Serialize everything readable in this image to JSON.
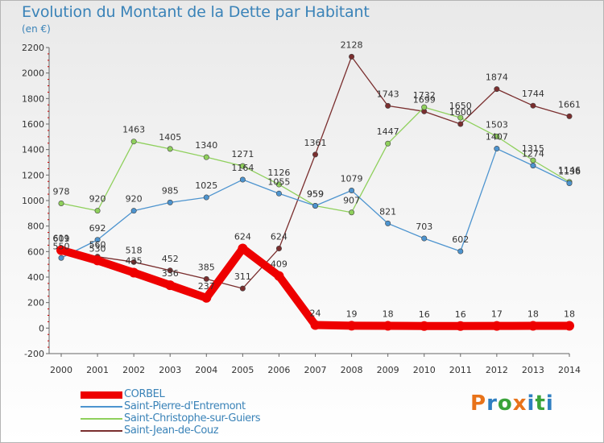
{
  "header": {
    "title": "Evolution du Montant de la Dette par Habitant",
    "subtitle": "(en €)"
  },
  "logo": {
    "text": "Proxiti",
    "colors": [
      "#e8731a",
      "#2f7fc1",
      "#3aa33a",
      "#e8731a",
      "#2f7fc1",
      "#3aa33a",
      "#2f7fc1"
    ]
  },
  "chart_data": {
    "type": "line",
    "title": "Evolution du Montant de la Dette par Habitant",
    "ylabel": "(en €)",
    "xlabel": "",
    "x": [
      "2000",
      "2001",
      "2002",
      "2003",
      "2004",
      "2005",
      "2006",
      "2007",
      "2008",
      "2009",
      "2010",
      "2011",
      "2012",
      "2013",
      "2014"
    ],
    "ylim": [
      -200,
      2200
    ],
    "yticks": [
      "-200",
      "0",
      "200",
      "400",
      "600",
      "800",
      "1000",
      "1200",
      "1400",
      "1600",
      "1800",
      "2000",
      "2200"
    ],
    "grid": false,
    "legend_position": "bottom-left",
    "series": [
      {
        "name": "CORBEL",
        "color": "#ee0000",
        "labels": [
          "611",
          "530",
          "435",
          "336",
          "237",
          "624",
          "409",
          "24",
          "19",
          "18",
          "16",
          "16",
          "17",
          "18",
          "18"
        ],
        "values": [
          611,
          530,
          435,
          336,
          237,
          624,
          409,
          24,
          19,
          18,
          16,
          16,
          17,
          18,
          18
        ]
      },
      {
        "name": "Saint-Pierre-d'Entremont",
        "color": "#4d94cf",
        "labels": [
          "550",
          "692",
          "920",
          "985",
          "1025",
          "1164",
          "1055",
          "959",
          "1079",
          "821",
          "703",
          "602",
          "1407",
          "1274",
          "1136"
        ],
        "values": [
          550,
          692,
          920,
          985,
          1025,
          1164,
          1055,
          959,
          1079,
          821,
          703,
          602,
          1407,
          1274,
          1136
        ]
      },
      {
        "name": "Saint-Christophe-sur-Guiers",
        "color": "#8fd05c",
        "labels": [
          "978",
          "920",
          "1463",
          "1405",
          "1340",
          "1271",
          "1126",
          "959",
          "907",
          "1447",
          "1732",
          "1650",
          "1503",
          "1315",
          "1146"
        ],
        "values": [
          978,
          920,
          1463,
          1405,
          1340,
          1271,
          1126,
          959,
          907,
          1447,
          1732,
          1650,
          1503,
          1315,
          1146
        ]
      },
      {
        "name": "Saint-Jean-de-Couz",
        "color": "#7a2e2e",
        "labels": [
          "609",
          "560",
          "518",
          "452",
          "385",
          "311",
          "624",
          "1361",
          "2128",
          "1743",
          "1699",
          "1600",
          "1874",
          "1744",
          "1661"
        ],
        "values": [
          609,
          560,
          518,
          452,
          385,
          311,
          624,
          1361,
          2128,
          1743,
          1699,
          1600,
          1874,
          1744,
          1661
        ]
      }
    ]
  }
}
